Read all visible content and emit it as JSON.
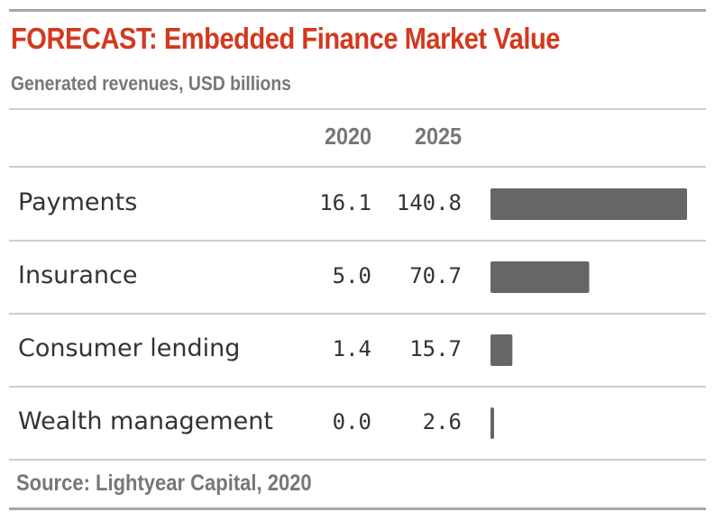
{
  "header": {
    "title": "FORECAST: Embedded Finance Market Value",
    "subtitle": "Generated revenues, USD billions"
  },
  "footer": {
    "source": "Source: Lightyear Capital, 2020"
  },
  "colors": {
    "title": "#d4381e",
    "bar": "#666666",
    "muted_text": "#777777",
    "body_text": "#333333",
    "rules": "#cfcfcf"
  },
  "chart_data": {
    "type": "table",
    "columns": [
      "2020",
      "2025"
    ],
    "categories": [
      "Payments",
      "Insurance",
      "Consumer lending",
      "Wealth management"
    ],
    "series": [
      {
        "name": "2020",
        "values": [
          16.1,
          5.0,
          1.4,
          0.0
        ]
      },
      {
        "name": "2025",
        "values": [
          140.8,
          70.7,
          15.7,
          2.6
        ]
      }
    ],
    "rows": [
      {
        "category": "Payments",
        "v2020": "16.1",
        "v2025": "140.8"
      },
      {
        "category": "Insurance",
        "v2020": "5.0",
        "v2025": "70.7"
      },
      {
        "category": "Consumer lending",
        "v2020": "1.4",
        "v2025": "15.7"
      },
      {
        "category": "Wealth management",
        "v2020": "0.0",
        "v2025": "2.6"
      }
    ],
    "bar_series": "2025",
    "title": "FORECAST: Embedded Finance Market Value",
    "subtitle": "Generated revenues, USD billions"
  }
}
